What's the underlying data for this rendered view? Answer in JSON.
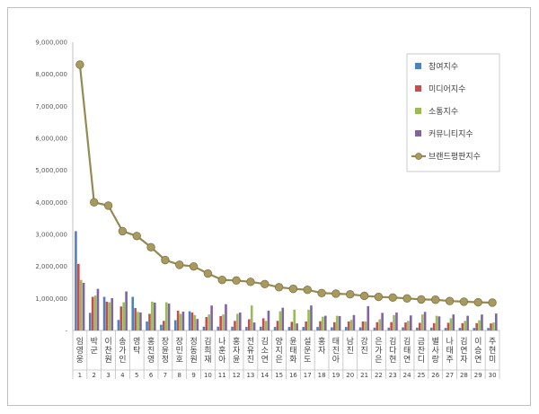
{
  "chart_data": {
    "type": "bar",
    "ylim": [
      0,
      9000000
    ],
    "yticks": [
      "-",
      "1,000,000",
      "2,000,000",
      "3,000,000",
      "4,000,000",
      "5,000,000",
      "6,000,000",
      "7,000,000",
      "8,000,000",
      "9,000,000"
    ],
    "categories": [
      "임영웅",
      "박군",
      "이찬원",
      "송가인",
      "영탁",
      "홍진영",
      "장윤정",
      "장민호",
      "정동원",
      "김희재",
      "나훈아",
      "홍자윤",
      "전유진",
      "김소연",
      "양지은",
      "윤태화",
      "설운도",
      "홍자",
      "태진아",
      "남진",
      "강진",
      "은가은",
      "김다현",
      "김태연",
      "금잔디",
      "별사랑",
      "나태주",
      "김연자",
      "이승연",
      "주현미"
    ],
    "ranks": [
      "1",
      "2",
      "3",
      "4",
      "5",
      "6",
      "7",
      "8",
      "9",
      "10",
      "11",
      "12",
      "13",
      "14",
      "15",
      "16",
      "17",
      "18",
      "19",
      "20",
      "21",
      "22",
      "23",
      "24",
      "25",
      "26",
      "27",
      "28",
      "29",
      "30"
    ],
    "legend_position": "top-right",
    "grid": false,
    "series": [
      {
        "name": "참여지수",
        "kind": "bar",
        "color": "#4f81bd",
        "values": [
          3100000,
          550000,
          1050000,
          330000,
          1050000,
          280000,
          180000,
          320000,
          600000,
          120000,
          120000,
          120000,
          110000,
          120000,
          110000,
          110000,
          110000,
          110000,
          100000,
          110000,
          100000,
          90000,
          90000,
          100000,
          90000,
          90000,
          80000,
          80000,
          80000,
          80000
        ]
      },
      {
        "name": "미디어지수",
        "kind": "bar",
        "color": "#c0504d",
        "values": [
          2080000,
          1050000,
          900000,
          750000,
          700000,
          520000,
          300000,
          620000,
          560000,
          420000,
          450000,
          300000,
          350000,
          380000,
          300000,
          270000,
          280000,
          290000,
          260000,
          280000,
          280000,
          260000,
          260000,
          250000,
          240000,
          230000,
          240000,
          230000,
          230000,
          220000
        ]
      },
      {
        "name": "소통지수",
        "kind": "bar",
        "color": "#9bbb59",
        "values": [
          1580000,
          1090000,
          880000,
          880000,
          580000,
          900000,
          880000,
          520000,
          480000,
          500000,
          500000,
          520000,
          780000,
          300000,
          600000,
          650000,
          650000,
          430000,
          460000,
          330000,
          280000,
          350000,
          480000,
          300000,
          500000,
          460000,
          380000,
          300000,
          320000,
          250000
        ]
      },
      {
        "name": "커뮤니티지수",
        "kind": "bar",
        "color": "#8064a2",
        "values": [
          1490000,
          1300000,
          1010000,
          1220000,
          560000,
          870000,
          840000,
          590000,
          360000,
          780000,
          820000,
          560000,
          250000,
          620000,
          710000,
          220000,
          780000,
          460000,
          450000,
          480000,
          760000,
          550000,
          560000,
          470000,
          580000,
          440000,
          500000,
          460000,
          500000,
          530000
        ]
      },
      {
        "name": "브랜드평판지수",
        "kind": "line",
        "color": "#948a54",
        "values": [
          8300000,
          4000000,
          3900000,
          3100000,
          2950000,
          2600000,
          2200000,
          2050000,
          2000000,
          1780000,
          1580000,
          1560000,
          1520000,
          1450000,
          1350000,
          1300000,
          1270000,
          1170000,
          1150000,
          1130000,
          1080000,
          1050000,
          1030000,
          1000000,
          970000,
          960000,
          920000,
          900000,
          880000,
          870000
        ]
      }
    ]
  }
}
